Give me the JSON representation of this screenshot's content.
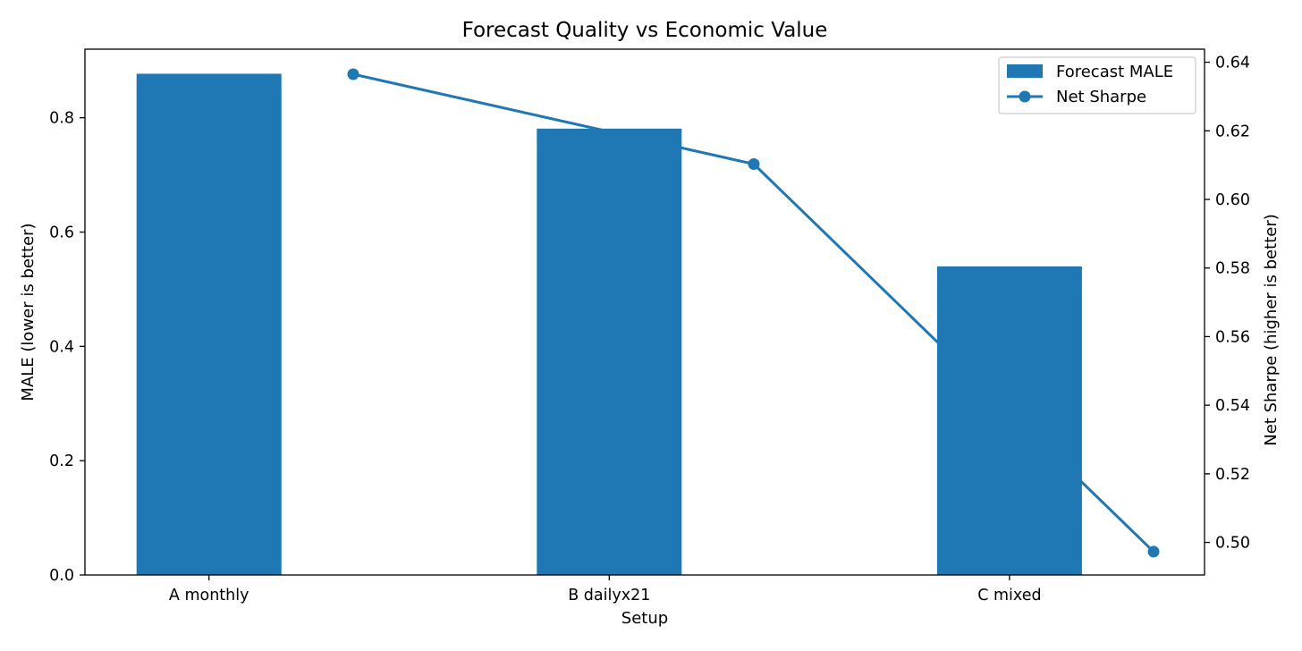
{
  "chart_data": {
    "type": "bar",
    "title": "Forecast Quality vs Economic Value",
    "xlabel": "Setup",
    "ylabel": "MALE (lower is better)",
    "y2label": "Net Sharpe (higher is better)",
    "categories": [
      "A monthly",
      "B dailyx21",
      "C mixed"
    ],
    "series": [
      {
        "name": "Forecast MALE",
        "kind": "bar",
        "axis": "left",
        "color": "#1f77b4",
        "values": [
          0.877,
          0.781,
          0.54
        ]
      },
      {
        "name": "Net Sharpe",
        "kind": "line",
        "axis": "right",
        "color": "#1f77b4",
        "marker": "circle",
        "values": [
          0.6365,
          0.6103,
          0.4973
        ]
      }
    ],
    "ylim": [
      0,
      0.92
    ],
    "y2lim": [
      0.4905,
      0.6438
    ],
    "yticks": [
      0.0,
      0.2,
      0.4,
      0.6,
      0.8
    ],
    "yticks_labels": [
      "0.0",
      "0.2",
      "0.4",
      "0.6",
      "0.8"
    ],
    "y2ticks": [
      0.5,
      0.52,
      0.54,
      0.56,
      0.58,
      0.6,
      0.62,
      0.64
    ],
    "y2ticks_labels": [
      "0.50",
      "0.52",
      "0.54",
      "0.56",
      "0.58",
      "0.60",
      "0.62",
      "0.64"
    ],
    "legend": "top-right",
    "grid": false
  }
}
